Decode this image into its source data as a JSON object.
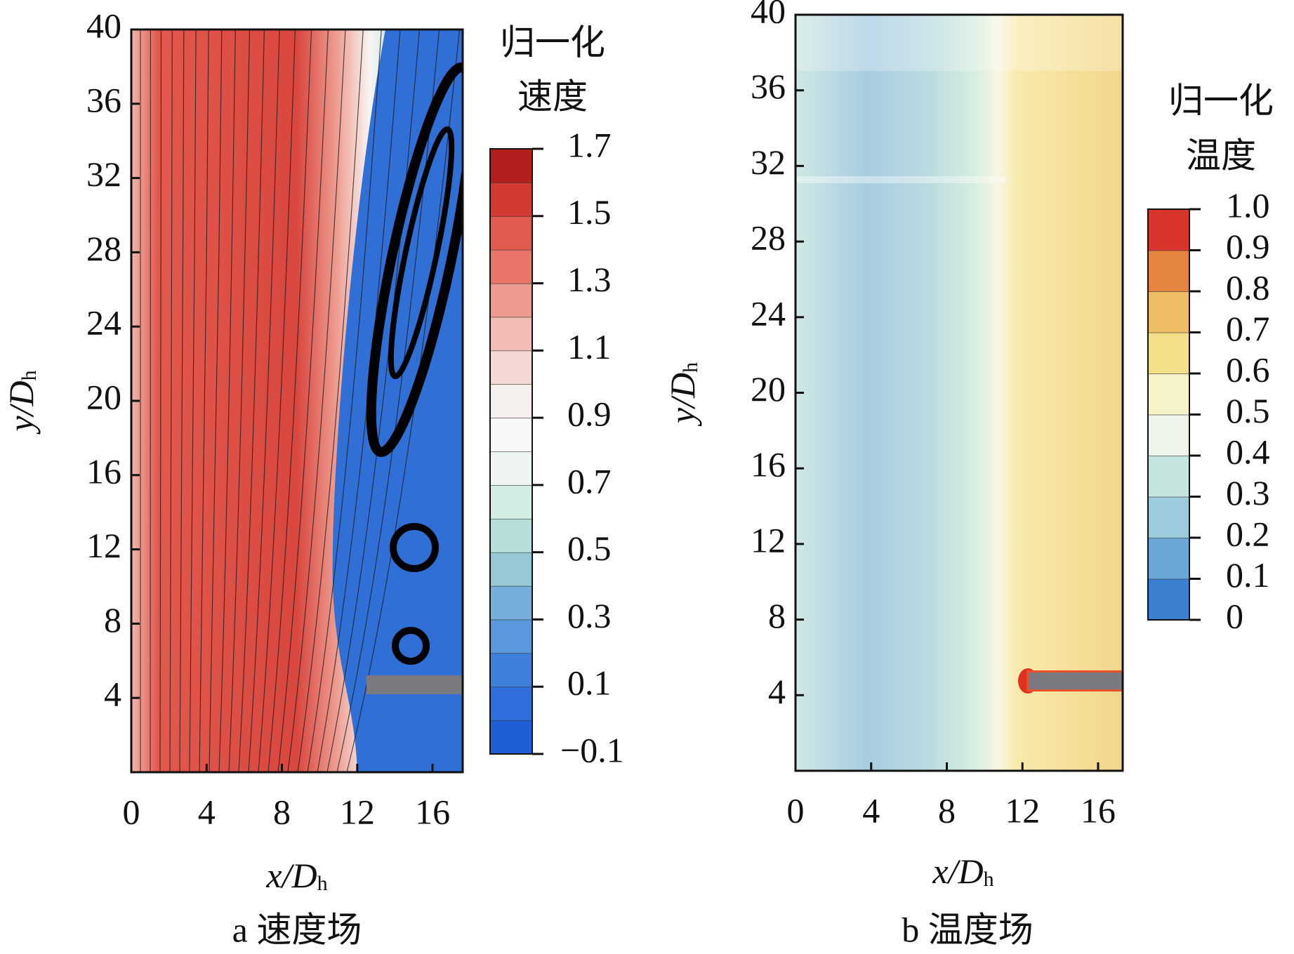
{
  "chart_data": [
    {
      "type": "contour",
      "xlabel": "x/D",
      "xlabel_sub": "h",
      "ylabel": "y/D",
      "ylabel_sub": "h",
      "caption": "a  速度场",
      "xlim": [
        0,
        17.6
      ],
      "xticks": [
        0,
        4,
        8,
        12,
        16
      ],
      "ylim": [
        0,
        40
      ],
      "yticks": [
        4,
        8,
        12,
        16,
        20,
        24,
        28,
        32,
        36,
        40
      ],
      "colorbar": {
        "title": [
          "归一化",
          "速度"
        ],
        "lim": [
          -0.1,
          1.7
        ],
        "ticks": [
          {
            "value": -0.1,
            "label": "−0.1"
          },
          0.1,
          0.3,
          0.5,
          0.7,
          0.9,
          1.1,
          1.3,
          1.5,
          1.7
        ],
        "colors": [
          "#1f5fd6",
          "#2f6fdb",
          "#3f80dc",
          "#5a97dc",
          "#76aed9",
          "#96c8d6",
          "#b5dfd8",
          "#d3ece6",
          "#eef4f2",
          "#f8f8f8",
          "#f5efee",
          "#f4d8d3",
          "#f2bdb5",
          "#ee9a90",
          "#e97468",
          "#e05a4f",
          "#d23a33",
          "#b41e1c"
        ]
      }
    },
    {
      "type": "contour",
      "xlabel": "x/D",
      "xlabel_sub": "h",
      "ylabel": "y/D",
      "ylabel_sub": "h",
      "caption": "b  温度场",
      "xlim": [
        0,
        17.3
      ],
      "xticks": [
        0,
        4,
        8,
        12,
        16
      ],
      "ylim": [
        0,
        40
      ],
      "yticks": [
        4,
        8,
        12,
        16,
        20,
        24,
        28,
        32,
        36,
        40
      ],
      "colorbar": {
        "title": [
          "归一化",
          "温度"
        ],
        "lim": [
          0,
          1
        ],
        "ticks": [
          0,
          0.1,
          0.2,
          0.3,
          0.4,
          0.5,
          0.6,
          0.7,
          0.8,
          0.9,
          {
            "value": 1,
            "label": "1.0"
          }
        ],
        "colors": [
          "#3a7fd0",
          "#6aa6d8",
          "#9ccbdc",
          "#c6e4df",
          "#eef4ea",
          "#f6f3c8",
          "#f3de8a",
          "#eebe64",
          "#e5853f",
          "#d8362c"
        ]
      }
    }
  ]
}
